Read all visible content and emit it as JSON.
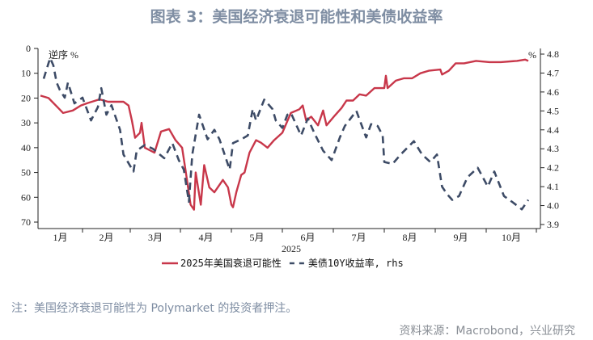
{
  "title": "图表 3：美国经济衰退可能性和美债收益率",
  "note": "注：美国经济衰退可能性为 Polymarket 的投资者押注。",
  "source": "资料来源：Macrobond，兴业研究",
  "chart_data": {
    "type": "line",
    "xlabel": "2025",
    "left_axis": {
      "label": "逆序 %",
      "ylim": [
        0,
        70
      ],
      "inverted": true,
      "ticks": [
        "0",
        "10",
        "20",
        "30",
        "40",
        "50",
        "60",
        "70"
      ]
    },
    "right_axis": {
      "label": "%",
      "ylim": [
        3.9,
        4.8
      ],
      "ticks": [
        "3.9",
        "4.0",
        "4.1",
        "4.2",
        "4.3",
        "4.4",
        "4.5",
        "4.6",
        "4.7",
        "4.8"
      ]
    },
    "x_ticks": [
      "1月",
      "2月",
      "3月",
      "4月",
      "5月",
      "6月",
      "7月",
      "8月",
      "9月",
      "10月"
    ],
    "grid": false,
    "legend_position": "bottom",
    "series": [
      {
        "name": "2025年美国衰退可能性",
        "axis": "left",
        "color": "#c8374a",
        "style": "solid",
        "x": [
          "01-06",
          "01-11",
          "01-17",
          "01-20",
          "01-26",
          "01-31",
          "02-04",
          "02-11",
          "02-16",
          "02-25",
          "02-28",
          "03-02",
          "03-04",
          "03-07",
          "03-08",
          "03-10",
          "03-13",
          "03-16",
          "03-20",
          "03-25",
          "03-29",
          "04-02",
          "04-04",
          "04-07",
          "04-09",
          "04-10",
          "04-13",
          "04-15",
          "04-18",
          "04-21",
          "04-24",
          "04-26",
          "04-29",
          "05-01",
          "05-02",
          "05-04",
          "05-07",
          "05-09",
          "05-12",
          "05-16",
          "05-19",
          "05-23",
          "05-27",
          "06-01",
          "06-06",
          "06-11",
          "06-13",
          "06-15",
          "06-18",
          "06-22",
          "06-25",
          "06-27",
          "07-02",
          "07-06",
          "07-09",
          "07-13",
          "07-17",
          "07-21",
          "07-26",
          "08-01",
          "08-02",
          "08-03",
          "08-08",
          "08-13",
          "08-18",
          "08-23",
          "08-28",
          "09-04",
          "09-05",
          "09-09",
          "09-13",
          "09-18",
          "09-25",
          "10-03",
          "10-10",
          "10-20",
          "10-25",
          "10-27"
        ],
        "values": [
          19,
          20,
          24,
          26,
          25,
          23,
          22,
          20.5,
          21.5,
          21.5,
          23,
          29,
          36,
          34,
          30,
          40,
          41,
          42,
          33.5,
          32.5,
          37,
          40,
          49,
          63,
          65,
          50,
          63,
          47,
          56,
          58,
          55,
          53,
          56,
          63,
          64,
          58,
          51,
          50,
          42,
          37,
          38,
          40,
          37,
          34,
          26,
          24.5,
          23,
          29,
          27.5,
          31,
          25,
          31,
          27,
          24,
          21,
          21,
          18.5,
          19,
          16,
          16,
          11,
          16,
          13,
          12,
          12,
          10,
          9,
          8.5,
          10.5,
          9,
          6,
          6,
          5,
          5.5,
          5.5,
          5,
          4.5,
          5
        ]
      },
      {
        "name": "美债10Y收益率, rhs",
        "axis": "right",
        "color": "#3d4b66",
        "style": "dashed",
        "x": [
          "01-08",
          "01-12",
          "01-14",
          "01-16",
          "01-18",
          "01-21",
          "01-23",
          "01-27",
          "02-01",
          "02-06",
          "02-10",
          "02-12",
          "02-15",
          "02-18",
          "02-23",
          "02-25",
          "03-03",
          "03-05",
          "03-10",
          "03-15",
          "03-22",
          "03-27",
          "03-31",
          "04-03",
          "04-06",
          "04-08",
          "04-12",
          "04-17",
          "04-21",
          "04-24",
          "04-30",
          "05-02",
          "05-07",
          "05-11",
          "05-14",
          "05-16",
          "05-21",
          "05-26",
          "05-28",
          "06-01",
          "06-04",
          "06-06",
          "06-12",
          "06-16",
          "06-20",
          "06-25",
          "06-30",
          "07-05",
          "07-08",
          "07-15",
          "07-21",
          "07-24",
          "07-28",
          "07-31",
          "08-01",
          "08-06",
          "08-11",
          "08-19",
          "08-24",
          "08-29",
          "09-02",
          "09-05",
          "09-08",
          "09-11",
          "09-15",
          "09-20",
          "09-26",
          "10-02",
          "10-06",
          "10-12",
          "10-17",
          "10-23",
          "10-27"
        ],
        "values": [
          4.67,
          4.78,
          4.74,
          4.65,
          4.61,
          4.57,
          4.65,
          4.54,
          4.57,
          4.45,
          4.52,
          4.62,
          4.48,
          4.53,
          4.4,
          4.27,
          4.18,
          4.29,
          4.32,
          4.3,
          4.25,
          4.33,
          4.24,
          4.19,
          4.02,
          4.27,
          4.48,
          4.35,
          4.4,
          4.35,
          4.19,
          4.33,
          4.35,
          4.37,
          4.51,
          4.45,
          4.56,
          4.51,
          4.45,
          4.41,
          4.48,
          4.49,
          4.37,
          4.46,
          4.38,
          4.29,
          4.24,
          4.36,
          4.42,
          4.5,
          4.36,
          4.43,
          4.42,
          4.37,
          4.23,
          4.22,
          4.27,
          4.34,
          4.27,
          4.23,
          4.27,
          4.1,
          4.06,
          4.03,
          4.05,
          4.15,
          4.2,
          4.1,
          4.18,
          4.05,
          4.02,
          3.98,
          4.03
        ]
      }
    ]
  }
}
